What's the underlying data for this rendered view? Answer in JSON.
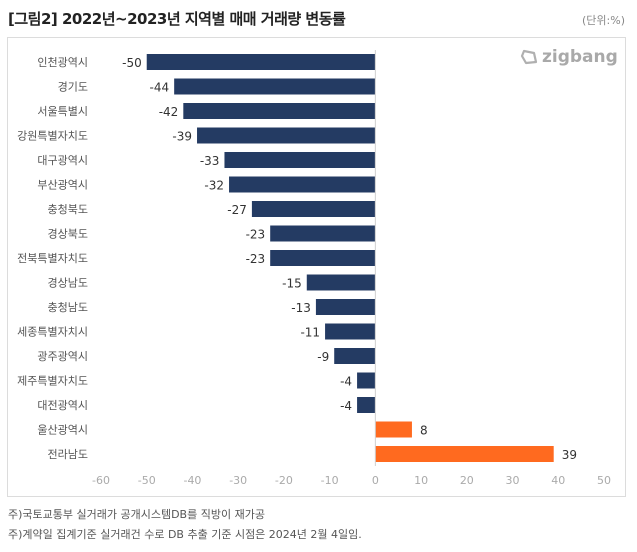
{
  "header": {
    "title": "[그림2] 2022년~2023년 지역별 매매 거래량 변동률",
    "unit": "(단위:%)"
  },
  "logo": {
    "text": "zigbang",
    "icon": "zigbang-logo-icon"
  },
  "chart_data": {
    "type": "bar",
    "orientation": "horizontal",
    "title": "[그림2] 2022년~2023년 지역별 매매 거래량 변동률",
    "xlabel": "",
    "ylabel": "",
    "unit": "%",
    "xlim": [
      -60,
      50
    ],
    "xticks": [
      "-60",
      "-50",
      "-40",
      "-30",
      "-20",
      "-10",
      "0",
      "10",
      "20",
      "30",
      "40",
      "50"
    ],
    "categories": [
      "인천광역시",
      "경기도",
      "서울특별시",
      "강원특별자치도",
      "대구광역시",
      "부산광역시",
      "충청북도",
      "경상북도",
      "전북특별자치도",
      "경상남도",
      "충청남도",
      "세종특별자치시",
      "광주광역시",
      "제주특별자치도",
      "대전광역시",
      "울산광역시",
      "전라남도"
    ],
    "values": [
      -50,
      -44,
      -42,
      -39,
      -33,
      -32,
      -27,
      -23,
      -23,
      -15,
      -13,
      -11,
      -9,
      -4,
      -4,
      8,
      39
    ],
    "labels": [
      "-50",
      "-44",
      "-42",
      "-39",
      "-33",
      "-32",
      "-27",
      "-23",
      "-23",
      "-15",
      "-13",
      "-11",
      "-9",
      "-4",
      "-4",
      "8",
      "39"
    ],
    "colors": {
      "negative": "#243b63",
      "positive": "#ff6a1f"
    },
    "grid": false,
    "legend": "none"
  },
  "footnotes": [
    "주)국토교통부 실거래가 공개시스템DB를 직방이 재가공",
    "주)계약일 집계기준 실거래건 수로 DB 추출 기준 시점은 2024년 2월 4일임."
  ]
}
